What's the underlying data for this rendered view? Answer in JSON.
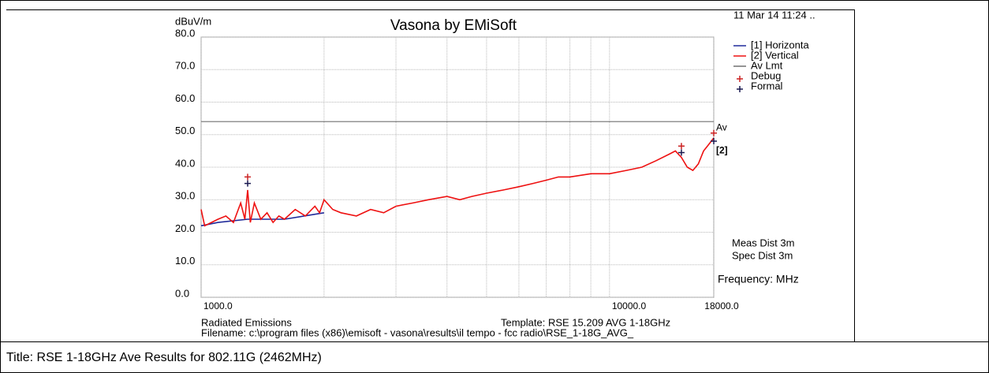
{
  "chart_data": {
    "type": "line",
    "title": "Vasona by EMiSoft",
    "y_label": "dBuV/m",
    "timestamp": "11 Mar 14 11:24 ..",
    "x_unit_label": "Frequency: MHz",
    "notes": [
      "Meas Dist 3m",
      "Spec Dist 3m"
    ],
    "footer": [
      "Radiated Emissions",
      "Template: RSE 15.209 AVG 1-18GHz",
      "Filename: c:\\program files (x86)\\emisoft - vasona\\results\\il tempo - fcc radio\\RSE_1-18G_AVG_"
    ],
    "page_title": "Title: RSE 1-18GHz Ave Results for 802.11G (2462MHz)",
    "xscale": "log",
    "xlim": [
      1000,
      18000
    ],
    "xticks": [
      {
        "value": 1000,
        "label": "1000.0"
      },
      {
        "value": 10000,
        "label": "10000.0"
      },
      {
        "value": 18000,
        "label": "18000.0"
      }
    ],
    "x_minor_grid": [
      2000,
      3000,
      4000,
      5000,
      6000,
      7000,
      8000,
      9000
    ],
    "ylim": [
      0,
      80
    ],
    "yticks": [
      {
        "value": 0,
        "label": "0.0"
      },
      {
        "value": 10,
        "label": "10.0"
      },
      {
        "value": 20,
        "label": "20.0"
      },
      {
        "value": 30,
        "label": "30.0"
      },
      {
        "value": 40,
        "label": "40.0"
      },
      {
        "value": 50,
        "label": "50.0"
      },
      {
        "value": 60,
        "label": "60.0"
      },
      {
        "value": 70,
        "label": "70.0"
      },
      {
        "value": 80,
        "label": "80.0"
      }
    ],
    "grid": true,
    "series": [
      {
        "name": "[1] Horizonta",
        "color": "#1f2a9a",
        "x": [
          1000,
          1100,
          1300,
          1600,
          2000
        ],
        "values": [
          22,
          23,
          24,
          24,
          26
        ]
      },
      {
        "name": "[2] Vertical",
        "color": "#ee1111",
        "x": [
          1000,
          1020,
          1060,
          1100,
          1150,
          1200,
          1250,
          1280,
          1300,
          1320,
          1350,
          1400,
          1450,
          1500,
          1550,
          1600,
          1700,
          1800,
          1900,
          1950,
          2000,
          2100,
          2200,
          2400,
          2600,
          2800,
          3000,
          3300,
          3600,
          4000,
          4300,
          4600,
          5000,
          5500,
          6000,
          6500,
          7000,
          7500,
          8000,
          9000,
          10000,
          11000,
          12000,
          13000,
          14000,
          14500,
          15000,
          15500,
          16000,
          16500,
          17000,
          17500,
          18000
        ],
        "values": [
          27,
          22,
          23,
          24,
          25,
          23,
          29,
          24,
          33,
          23,
          29,
          24,
          26,
          23,
          25,
          24,
          27,
          25,
          28,
          26,
          30,
          27,
          26,
          25,
          27,
          26,
          28,
          29,
          30,
          31,
          30,
          31,
          32,
          33,
          34,
          35,
          36,
          37,
          37,
          38,
          38,
          39,
          40,
          42,
          44,
          45,
          43,
          40,
          39,
          41,
          45,
          47,
          49
        ]
      },
      {
        "name": "Av Lmt",
        "color": "#707070",
        "x": [
          1000,
          18000
        ],
        "values": [
          54,
          54
        ]
      }
    ],
    "markers": [
      {
        "name": "Debug",
        "color": "#cc2222",
        "x": [
          1300,
          15000,
          18000
        ],
        "values": [
          37,
          46.5,
          50.5
        ]
      },
      {
        "name": "Formal",
        "color": "#1a1a50",
        "x": [
          1300,
          15000,
          18000
        ],
        "values": [
          35,
          44.5,
          48
        ]
      }
    ],
    "annotations": [
      {
        "text": "Av",
        "x": 18000,
        "y": 52
      },
      {
        "text": "[2]",
        "x": 18000,
        "y": 45
      }
    ]
  }
}
